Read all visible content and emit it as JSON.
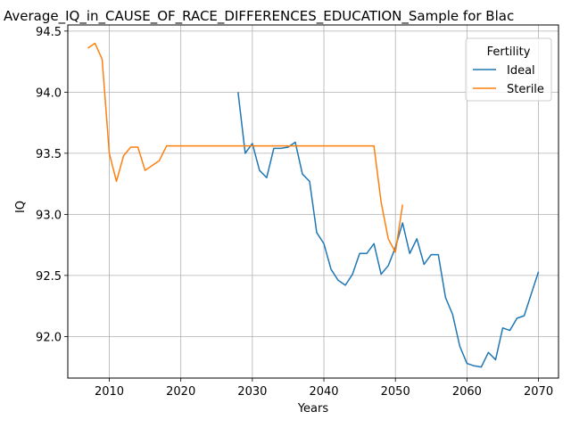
{
  "chart_data": {
    "type": "line",
    "title": "Average_IQ_in_CAUSE_OF_RACE_DIFFERENCES_EDUCATION_Sample for Blac",
    "xlabel": "Years",
    "ylabel": "IQ",
    "xlim": [
      2004.2,
      2072.8
    ],
    "ylim": [
      91.66,
      94.55
    ],
    "xticks": [
      2010,
      2020,
      2030,
      2040,
      2050,
      2060,
      2070
    ],
    "yticks": [
      92.0,
      92.5,
      93.0,
      93.5,
      94.0,
      94.5
    ],
    "xtick_labels": [
      "2010",
      "2020",
      "2030",
      "2040",
      "2050",
      "2060",
      "2070"
    ],
    "ytick_labels": [
      "92.0",
      "92.5",
      "93.0",
      "93.5",
      "94.0",
      "94.5"
    ],
    "grid": true,
    "legend": {
      "title": "Fertility",
      "position": "top-right"
    },
    "series": [
      {
        "name": "Ideal",
        "color": "#1f77b4",
        "x": [
          2028,
          2029,
          2030,
          2031,
          2032,
          2033,
          2034,
          2035,
          2036,
          2037,
          2038,
          2039,
          2040,
          2041,
          2042,
          2043,
          2044,
          2045,
          2046,
          2047,
          2048,
          2049,
          2050,
          2051,
          2052,
          2053,
          2054,
          2055,
          2056,
          2057,
          2058,
          2059,
          2060,
          2061,
          2062,
          2063,
          2064,
          2065,
          2066,
          2067,
          2068,
          2069,
          2070
        ],
        "y": [
          94.0,
          93.5,
          93.58,
          93.36,
          93.3,
          93.54,
          93.54,
          93.55,
          93.59,
          93.33,
          93.27,
          92.85,
          92.76,
          92.55,
          92.46,
          92.42,
          92.51,
          92.68,
          92.68,
          92.76,
          92.51,
          92.58,
          92.73,
          92.93,
          92.68,
          92.8,
          92.59,
          92.67,
          92.67,
          92.32,
          92.18,
          91.92,
          91.78,
          91.76,
          91.75,
          91.87,
          91.81,
          92.07,
          92.05,
          92.15,
          92.17,
          92.35,
          92.53
        ]
      },
      {
        "name": "Sterile",
        "color": "#ff7f0e",
        "x": [
          2007,
          2008,
          2009,
          2010,
          2011,
          2012,
          2013,
          2014,
          2015,
          2016,
          2017,
          2018,
          2019,
          2020,
          2021,
          2022,
          2023,
          2024,
          2025,
          2026,
          2027,
          2028,
          2029,
          2030,
          2031,
          2032,
          2033,
          2034,
          2035,
          2036,
          2037,
          2038,
          2039,
          2040,
          2041,
          2042,
          2043,
          2044,
          2045,
          2046,
          2047,
          2048,
          2049,
          2050,
          2051
        ],
        "y": [
          94.36,
          94.4,
          94.27,
          93.5,
          93.27,
          93.48,
          93.55,
          93.55,
          93.36,
          93.4,
          93.44,
          93.56,
          93.56,
          93.56,
          93.56,
          93.56,
          93.56,
          93.56,
          93.56,
          93.56,
          93.56,
          93.56,
          93.56,
          93.56,
          93.56,
          93.56,
          93.56,
          93.56,
          93.56,
          93.56,
          93.56,
          93.56,
          93.56,
          93.56,
          93.56,
          93.56,
          93.56,
          93.56,
          93.56,
          93.56,
          93.56,
          93.1,
          92.8,
          92.69,
          93.08
        ]
      }
    ]
  }
}
